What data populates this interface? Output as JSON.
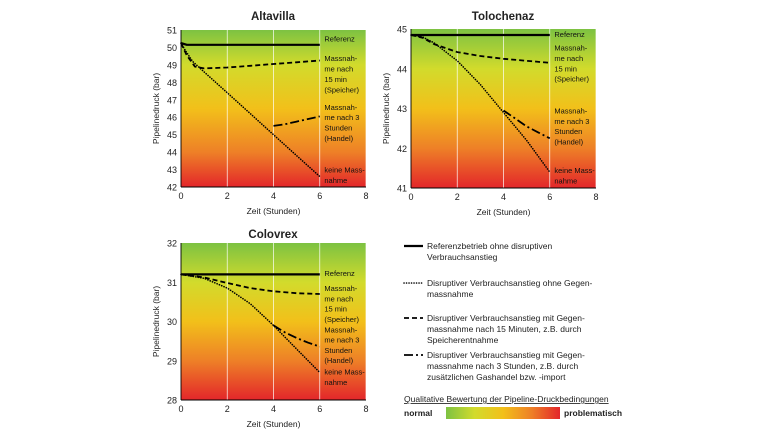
{
  "chart_data": [
    {
      "type": "line",
      "title": "Altavilla",
      "xlabel": "Zeit (Stunden)",
      "ylabel": "Pipelinedruck (bar)",
      "xlim": [
        0,
        8
      ],
      "ylim": [
        42,
        51
      ],
      "xticks": [
        0,
        2,
        4,
        6,
        8
      ],
      "yticks": [
        42,
        43,
        44,
        45,
        46,
        47,
        48,
        49,
        50,
        51
      ],
      "gradient_stops": [
        {
          "value": 51,
          "color": "#7dc242"
        },
        {
          "value": 49,
          "color": "#d2db2c"
        },
        {
          "value": 46.5,
          "color": "#f2c01a"
        },
        {
          "value": 44,
          "color": "#ee8027"
        },
        {
          "value": 42,
          "color": "#e3262a"
        }
      ],
      "series": [
        {
          "name": "Referenz",
          "style": "solid",
          "x": [
            0,
            0.25,
            6
          ],
          "y": [
            50.25,
            50.15,
            50.15
          ]
        },
        {
          "name": "keine Massnahme",
          "style": "dotted",
          "x": [
            0,
            0.2,
            0.5,
            1,
            2,
            3,
            4,
            5,
            6
          ],
          "y": [
            50.25,
            49.8,
            49.2,
            48.6,
            47.4,
            46.2,
            45.0,
            43.8,
            42.6
          ]
        },
        {
          "name": "Massnahme nach 15 min (Speicher)",
          "style": "dashed",
          "x": [
            0,
            0.25,
            0.6,
            1,
            2,
            3,
            4,
            5,
            6
          ],
          "y": [
            50.25,
            49.55,
            48.9,
            48.8,
            48.85,
            48.95,
            49.05,
            49.15,
            49.25
          ]
        },
        {
          "name": "Massnahme nach 3 Stunden (Handel)",
          "style": "dashdot",
          "x": [
            4,
            4.5,
            5,
            5.5,
            6
          ],
          "y": [
            45.5,
            45.6,
            45.75,
            45.9,
            46.05
          ]
        }
      ],
      "annotations": [
        {
          "text": "Referenz",
          "x": 6.2,
          "y": 50.5
        },
        {
          "text": "Massnah-",
          "x": 6.2,
          "y": 49.4
        },
        {
          "text": "me nach",
          "x": 6.2,
          "y": 48.8
        },
        {
          "text": "15 min",
          "x": 6.2,
          "y": 48.2
        },
        {
          "text": "(Speicher)",
          "x": 6.2,
          "y": 47.6
        },
        {
          "text": "Massnah-",
          "x": 6.2,
          "y": 46.6
        },
        {
          "text": "me nach 3",
          "x": 6.2,
          "y": 46.0
        },
        {
          "text": "Stunden",
          "x": 6.2,
          "y": 45.4
        },
        {
          "text": "(Handel)",
          "x": 6.2,
          "y": 44.8
        },
        {
          "text": "keine Mass-",
          "x": 6.2,
          "y": 43.0
        },
        {
          "text": "nahme",
          "x": 6.2,
          "y": 42.4
        }
      ]
    },
    {
      "type": "line",
      "title": "Tolochenaz",
      "xlabel": "Zeit (Stunden)",
      "ylabel": "Pipelinedruck (bar)",
      "xlim": [
        0,
        8
      ],
      "ylim": [
        41,
        45
      ],
      "xticks": [
        0,
        2,
        4,
        6,
        8
      ],
      "yticks": [
        41,
        42,
        43,
        44,
        45
      ],
      "gradient_stops": [
        {
          "value": 45,
          "color": "#7dc242"
        },
        {
          "value": 44,
          "color": "#d2db2c"
        },
        {
          "value": 43,
          "color": "#f2c01a"
        },
        {
          "value": 42,
          "color": "#ee8027"
        },
        {
          "value": 41,
          "color": "#e3262a"
        }
      ],
      "series": [
        {
          "name": "Referenz",
          "style": "solid",
          "x": [
            0,
            6
          ],
          "y": [
            44.85,
            44.85
          ]
        },
        {
          "name": "keine Massnahme",
          "style": "dotted",
          "x": [
            0,
            0.5,
            1,
            2,
            3,
            4,
            5,
            6
          ],
          "y": [
            44.85,
            44.8,
            44.65,
            44.2,
            43.6,
            42.9,
            42.2,
            41.4
          ]
        },
        {
          "name": "Massnahme nach 15 min (Speicher)",
          "style": "dashed",
          "x": [
            0,
            0.5,
            1,
            2,
            3,
            4,
            5,
            6
          ],
          "y": [
            44.85,
            44.78,
            44.62,
            44.42,
            44.32,
            44.25,
            44.2,
            44.15
          ]
        },
        {
          "name": "Massnahme nach 3 Stunden (Handel)",
          "style": "dashdot",
          "x": [
            4,
            4.5,
            5,
            5.5,
            6
          ],
          "y": [
            42.95,
            42.75,
            42.55,
            42.4,
            42.25
          ]
        }
      ],
      "annotations": [
        {
          "text": "Referenz",
          "x": 6.2,
          "y": 44.87
        },
        {
          "text": "Massnah-",
          "x": 6.2,
          "y": 44.53
        },
        {
          "text": "me nach",
          "x": 6.2,
          "y": 44.27
        },
        {
          "text": "15 min",
          "x": 6.2,
          "y": 44.01
        },
        {
          "text": "(Speicher)",
          "x": 6.2,
          "y": 43.75
        },
        {
          "text": "Massnah-",
          "x": 6.2,
          "y": 42.95
        },
        {
          "text": "me nach 3",
          "x": 6.2,
          "y": 42.69
        },
        {
          "text": "Stunden",
          "x": 6.2,
          "y": 42.43
        },
        {
          "text": "(Handel)",
          "x": 6.2,
          "y": 42.17
        },
        {
          "text": "keine Mass-",
          "x": 6.2,
          "y": 41.45
        },
        {
          "text": "nahme",
          "x": 6.2,
          "y": 41.19
        }
      ]
    },
    {
      "type": "line",
      "title": "Colovrex",
      "xlabel": "Zeit (Stunden)",
      "ylabel": "Pipelinedruck (bar)",
      "xlim": [
        0,
        8
      ],
      "ylim": [
        28,
        32
      ],
      "xticks": [
        0,
        2,
        4,
        6,
        8
      ],
      "yticks": [
        28,
        29,
        30,
        31,
        32
      ],
      "gradient_stops": [
        {
          "value": 32,
          "color": "#7dc242"
        },
        {
          "value": 31,
          "color": "#d2db2c"
        },
        {
          "value": 30,
          "color": "#f2c01a"
        },
        {
          "value": 29,
          "color": "#ee8027"
        },
        {
          "value": 28,
          "color": "#e3262a"
        }
      ],
      "series": [
        {
          "name": "Referenz",
          "style": "solid",
          "x": [
            0,
            6
          ],
          "y": [
            31.2,
            31.2
          ]
        },
        {
          "name": "keine Massnahme",
          "style": "dotted",
          "x": [
            0,
            1,
            2,
            3,
            4,
            5,
            6
          ],
          "y": [
            31.2,
            31.1,
            30.85,
            30.45,
            29.9,
            29.3,
            28.7
          ]
        },
        {
          "name": "Massnahme nach 15 min (Speicher)",
          "style": "dashed",
          "x": [
            0,
            1,
            2,
            3,
            4,
            5,
            6
          ],
          "y": [
            31.2,
            31.12,
            30.98,
            30.85,
            30.77,
            30.72,
            30.7
          ]
        },
        {
          "name": "Massnahme nach 3 Stunden (Handel)",
          "style": "dashdot",
          "x": [
            4,
            4.5,
            5,
            5.5,
            6
          ],
          "y": [
            29.9,
            29.72,
            29.58,
            29.46,
            29.36
          ]
        }
      ],
      "annotations": [
        {
          "text": "Referenz",
          "x": 6.2,
          "y": 31.23
        },
        {
          "text": "Massnah-",
          "x": 6.2,
          "y": 30.85
        },
        {
          "text": "me nach",
          "x": 6.2,
          "y": 30.59
        },
        {
          "text": "15 min",
          "x": 6.2,
          "y": 30.33
        },
        {
          "text": "(Speicher)",
          "x": 6.2,
          "y": 30.07
        },
        {
          "text": "Massnah-",
          "x": 6.2,
          "y": 29.8
        },
        {
          "text": "me nach 3",
          "x": 6.2,
          "y": 29.54
        },
        {
          "text": "Stunden",
          "x": 6.2,
          "y": 29.28
        },
        {
          "text": "(Handel)",
          "x": 6.2,
          "y": 29.02
        },
        {
          "text": "keine Mass-",
          "x": 6.2,
          "y": 28.72
        },
        {
          "text": "nahme",
          "x": 6.2,
          "y": 28.46
        }
      ]
    }
  ],
  "legend": {
    "items": [
      {
        "style": "solid",
        "lines": [
          "Referenzbetrieb ohne disruptiven",
          "Verbrauchsanstieg"
        ]
      },
      {
        "style": "dotted",
        "lines": [
          "Disruptiver Verbrauchsanstieg ohne Gegen-",
          "massnahme"
        ]
      },
      {
        "style": "dashed",
        "lines": [
          "Disruptiver Verbrauchsanstieg mit Gegen-",
          "massnahme nach 15 Minuten, z.B. durch",
          "Speicherentnahme"
        ]
      },
      {
        "style": "dashdot",
        "lines": [
          "Disruptiver Verbrauchsanstieg mit Gegen-",
          "massnahme nach 3 Stunden, z.B. durch",
          "zusätzlichen Gashandel bzw. -import"
        ]
      }
    ],
    "scale": {
      "title": "Qualitative Bewertung der Pipeline-Druckbedingungen",
      "left_label": "normal",
      "right_label": "problematisch",
      "colors": [
        "#7dc242",
        "#d2db2c",
        "#f2c01a",
        "#ee8027",
        "#e3262a"
      ]
    }
  }
}
